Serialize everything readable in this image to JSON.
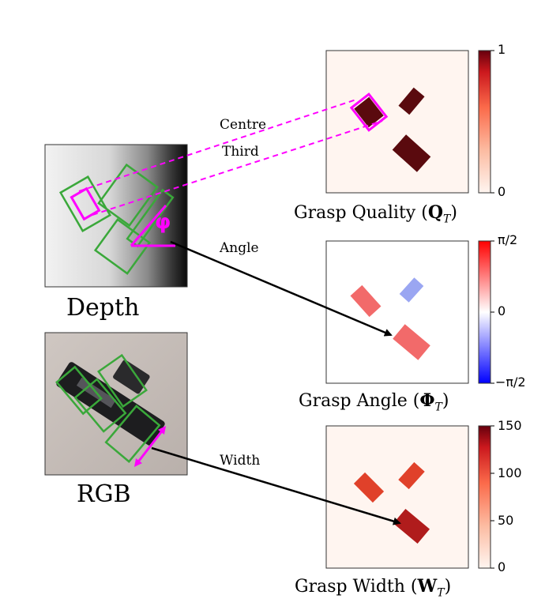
{
  "labels": {
    "depth": "Depth",
    "rgb": "RGB",
    "centre": "Centre",
    "third": "Third",
    "angle": "Angle",
    "width": "Width",
    "phi_symbol": "φ"
  },
  "panels": {
    "quality": {
      "caption_text": "Grasp Quality (",
      "caption_symbol": "Q",
      "caption_sub": "T",
      "caption_close": ")",
      "cbar_top": "1",
      "cbar_bottom": "0"
    },
    "angle": {
      "caption_text": "Grasp Angle (",
      "caption_symbol": "Φ",
      "caption_sub": "T",
      "caption_close": ")",
      "cbar_top": "π/2",
      "cbar_mid": "0",
      "cbar_bottom": "−π/2"
    },
    "width": {
      "caption_text": "Grasp Width (",
      "caption_symbol": "W",
      "caption_sub": "T",
      "caption_close": ")",
      "cbar_ticks": [
        "150",
        "100",
        "50",
        "0"
      ]
    }
  },
  "colors": {
    "grasp_box": "#3aa83a",
    "highlight": "#ff00ff",
    "quality_peak": "#5a0a0e",
    "angle_positive": "#f26a6a",
    "angle_negative": "#9aa6f2",
    "width_high": "#b01c1c",
    "width_mid": "#e0412a"
  }
}
